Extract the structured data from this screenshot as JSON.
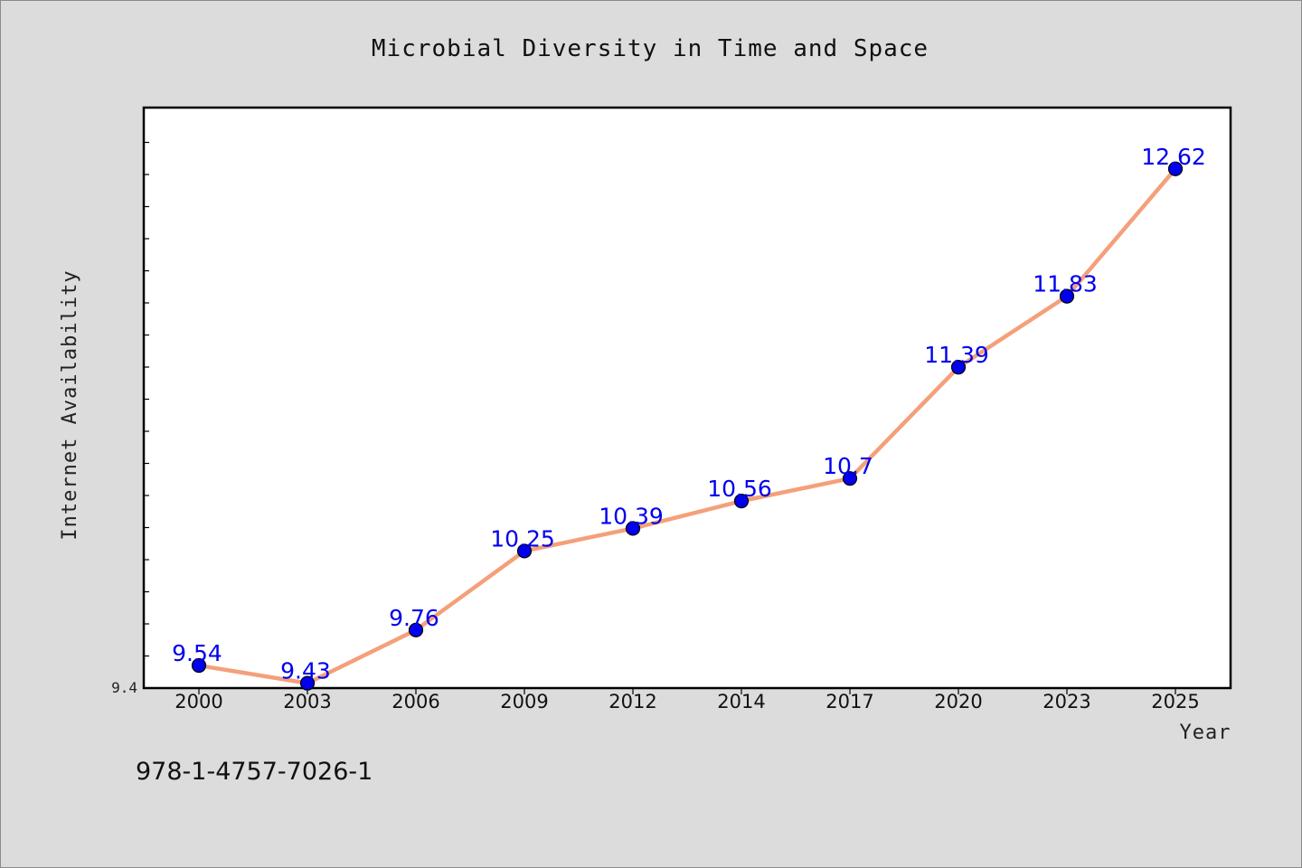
{
  "chart_data": {
    "type": "line",
    "title": "Microbial Diversity in Time and Space",
    "xlabel": "Year",
    "ylabel": "Internet Availability",
    "categories": [
      "2000",
      "2003",
      "2006",
      "2009",
      "2012",
      "2014",
      "2017",
      "2020",
      "2023",
      "2025"
    ],
    "series": [
      {
        "values": [
          9.54,
          9.43,
          9.76,
          10.25,
          10.39,
          10.56,
          10.7,
          11.39,
          11.83,
          12.62
        ],
        "labels": [
          "9.54",
          "9.43",
          "9.76",
          "10.25",
          "10.39",
          "10.56",
          "10.7",
          "11.39",
          "11.83",
          "12.62"
        ]
      }
    ],
    "ylim": [
      9.4,
      13.0
    ],
    "y_tick_label": "9.4",
    "grid": false,
    "line_color": "#f4a07a",
    "marker_color": "#0000ee",
    "label_color": "#0000ee"
  },
  "footer": {
    "code": "978-1-4757-7026-1"
  }
}
